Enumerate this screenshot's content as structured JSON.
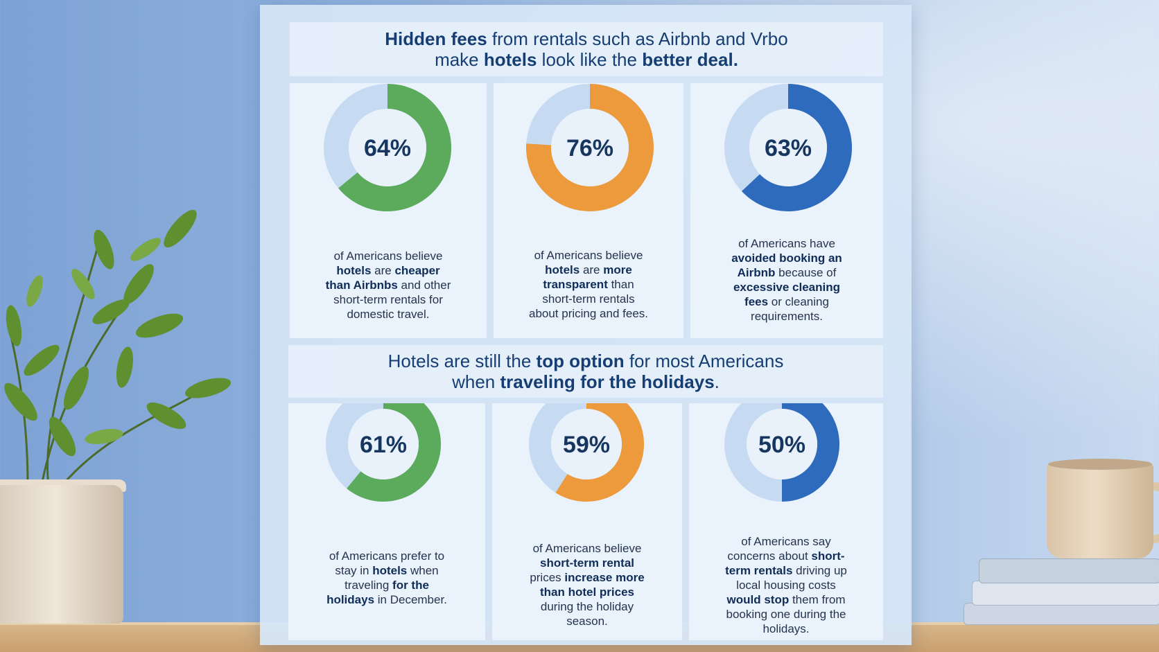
{
  "header": {
    "line1": [
      {
        "text": "Hidden fees",
        "bold": true
      },
      {
        "text": " from rentals such as Airbnb and Vrbo",
        "bold": false
      }
    ],
    "line2": [
      {
        "text": "make ",
        "bold": false
      },
      {
        "text": "hotels",
        "bold": true
      },
      {
        "text": " look like the ",
        "bold": false
      },
      {
        "text": "better deal.",
        "bold": true
      }
    ]
  },
  "subheader": {
    "line1": [
      {
        "text": "Hotels are still the ",
        "bold": false
      },
      {
        "text": "top option",
        "bold": true
      },
      {
        "text": " for most Americans",
        "bold": false
      }
    ],
    "line2": [
      {
        "text": "when ",
        "bold": false
      },
      {
        "text": "traveling for the holidays",
        "bold": true
      },
      {
        "text": ".",
        "bold": false
      }
    ]
  },
  "colors": {
    "green": "#5caa5c",
    "green_top": "#72b48e",
    "orange": "#ec9a3c",
    "blue": "#2f6bbc",
    "track": "#c6dbf2",
    "hole": "#e9f1fb"
  },
  "chart_data": [
    {
      "type": "pie",
      "variant": "donut",
      "value": 64,
      "label": "64%",
      "color": "green",
      "description": [
        [
          {
            "text": "of Americans believe",
            "bold": false
          }
        ],
        [
          {
            "text": "hotels",
            "bold": true
          },
          {
            "text": " are ",
            "bold": false
          },
          {
            "text": "cheaper",
            "bold": true
          }
        ],
        [
          {
            "text": "than Airbnbs",
            "bold": true
          },
          {
            "text": " and other",
            "bold": false
          }
        ],
        [
          {
            "text": "short-term rentals for",
            "bold": false
          }
        ],
        [
          {
            "text": "domestic travel.",
            "bold": false
          }
        ]
      ]
    },
    {
      "type": "pie",
      "variant": "donut",
      "value": 76,
      "label": "76%",
      "color": "orange",
      "description": [
        [
          {
            "text": "of Americans believe",
            "bold": false
          }
        ],
        [
          {
            "text": "hotels",
            "bold": true
          },
          {
            "text": " are ",
            "bold": false
          },
          {
            "text": "more",
            "bold": true
          }
        ],
        [
          {
            "text": "transparent",
            "bold": true
          },
          {
            "text": " than",
            "bold": false
          }
        ],
        [
          {
            "text": "short-term rentals",
            "bold": false
          }
        ],
        [
          {
            "text": "about pricing and fees.",
            "bold": false
          }
        ]
      ]
    },
    {
      "type": "pie",
      "variant": "donut",
      "value": 63,
      "label": "63%",
      "color": "blue",
      "description": [
        [
          {
            "text": "of Americans have",
            "bold": false
          }
        ],
        [
          {
            "text": "avoided booking an",
            "bold": true
          }
        ],
        [
          {
            "text": "Airbnb",
            "bold": true
          },
          {
            "text": " because of",
            "bold": false
          }
        ],
        [
          {
            "text": "excessive cleaning",
            "bold": true
          }
        ],
        [
          {
            "text": "fees",
            "bold": true
          },
          {
            "text": " or cleaning",
            "bold": false
          }
        ],
        [
          {
            "text": "requirements.",
            "bold": false
          }
        ]
      ]
    },
    {
      "type": "pie",
      "variant": "donut",
      "value": 61,
      "label": "61%",
      "color": "green",
      "description": [
        [
          {
            "text": "of Americans prefer to",
            "bold": false
          }
        ],
        [
          {
            "text": "stay in ",
            "bold": false
          },
          {
            "text": "hotels",
            "bold": true
          },
          {
            "text": " when",
            "bold": false
          }
        ],
        [
          {
            "text": "traveling ",
            "bold": false
          },
          {
            "text": "for the",
            "bold": true
          }
        ],
        [
          {
            "text": "holidays",
            "bold": true
          },
          {
            "text": " in December.",
            "bold": false
          }
        ]
      ]
    },
    {
      "type": "pie",
      "variant": "donut",
      "value": 59,
      "label": "59%",
      "color": "orange",
      "description": [
        [
          {
            "text": "of Americans believe",
            "bold": false
          }
        ],
        [
          {
            "text": "short-term rental",
            "bold": true
          }
        ],
        [
          {
            "text": "prices ",
            "bold": false
          },
          {
            "text": "increase more",
            "bold": true
          }
        ],
        [
          {
            "text": "than hotel prices",
            "bold": true
          }
        ],
        [
          {
            "text": "during the holiday",
            "bold": false
          }
        ],
        [
          {
            "text": "season.",
            "bold": false
          }
        ]
      ]
    },
    {
      "type": "pie",
      "variant": "donut",
      "value": 50,
      "label": "50%",
      "color": "blue",
      "description": [
        [
          {
            "text": "of Americans say",
            "bold": false
          }
        ],
        [
          {
            "text": "concerns about ",
            "bold": false
          },
          {
            "text": "short-",
            "bold": true
          }
        ],
        [
          {
            "text": "term rentals",
            "bold": true
          },
          {
            "text": " driving up",
            "bold": false
          }
        ],
        [
          {
            "text": "local housing costs",
            "bold": false
          }
        ],
        [
          {
            "text": "would stop",
            "bold": true
          },
          {
            "text": " them from",
            "bold": false
          }
        ],
        [
          {
            "text": "booking one during the",
            "bold": false
          }
        ],
        [
          {
            "text": "holidays.",
            "bold": false
          }
        ]
      ]
    }
  ]
}
